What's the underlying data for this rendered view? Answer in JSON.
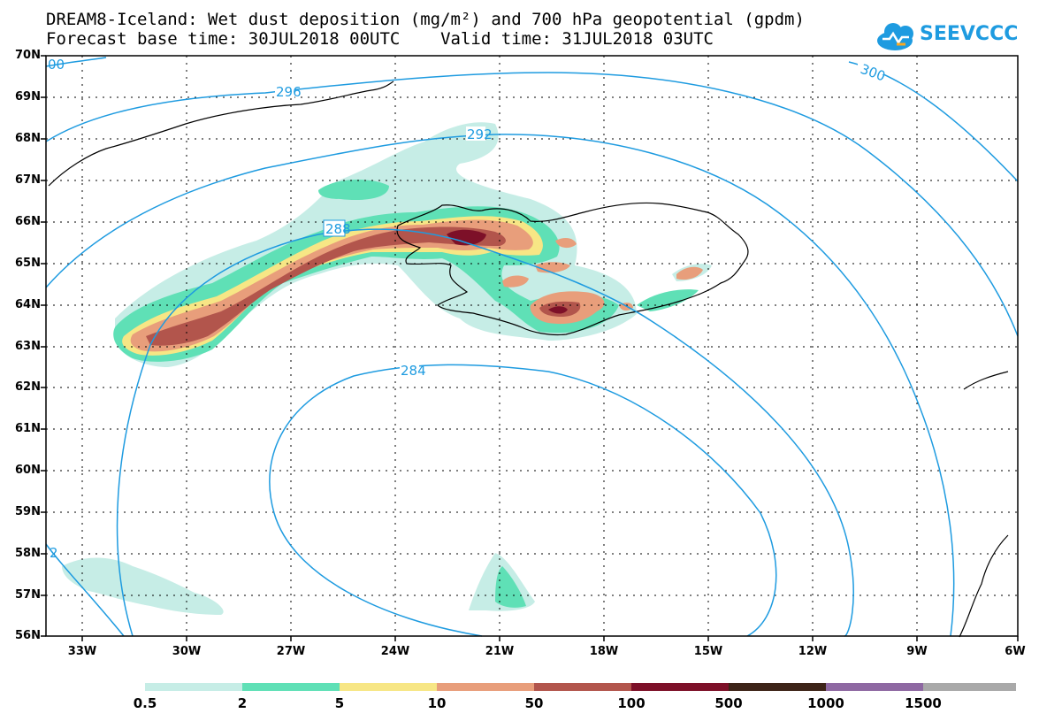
{
  "header": {
    "title_line1": "DREAM8-Iceland: Wet dust deposition (mg/m²) and 700 hPa geopotential (gpdm)",
    "title_line2": "Forecast base time: 30JUL2018 00UTC    Valid time: 31JUL2018 03UTC",
    "logo_text": "SEEVCCC"
  },
  "axes": {
    "lat_labels": [
      "70N",
      "69N",
      "68N",
      "67N",
      "66N",
      "65N",
      "64N",
      "63N",
      "62N",
      "61N",
      "60N",
      "59N",
      "58N",
      "57N",
      "56N"
    ],
    "lon_labels": [
      "33W",
      "30W",
      "27W",
      "24W",
      "21W",
      "18W",
      "15W",
      "12W",
      "9W",
      "6W"
    ]
  },
  "contours": {
    "labels": [
      "296",
      "292",
      "288",
      "284",
      "300",
      "00",
      "2"
    ]
  },
  "colorbar": {
    "colors": [
      "#c6ede6",
      "#5fe0b6",
      "#f7e685",
      "#e89e7b",
      "#b2554c",
      "#7d1028",
      "#3d2418",
      "#8e68a2",
      "#a9a9a9"
    ],
    "labels": [
      "0.5",
      "2",
      "5",
      "10",
      "50",
      "100",
      "500",
      "1000",
      "1500"
    ]
  }
}
